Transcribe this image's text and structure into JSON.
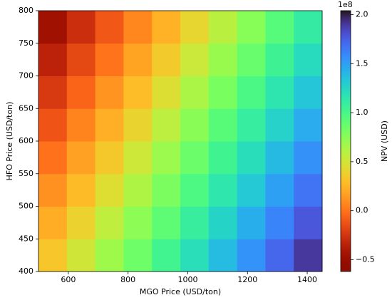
{
  "chart_data": {
    "type": "heatmap",
    "x_label": "MGO Price (USD/ton)",
    "y_label": "HFO Price (USD/ton)",
    "colorbar_label": "NPV (USD)",
    "colorbar_offset": "1e8",
    "colormap": "turbo_r",
    "x": [
      547.5,
      642.5,
      737.5,
      832.5,
      927.5,
      1022.5,
      1117.5,
      1212.5,
      1307.5,
      1402.5
    ],
    "y": [
      425,
      475,
      525,
      575,
      625,
      675,
      725,
      775
    ],
    "z": [
      [
        0.33,
        0.51,
        0.68,
        0.85,
        1.03,
        1.2,
        1.38,
        1.55,
        1.72,
        1.9
      ],
      [
        0.22,
        0.39,
        0.57,
        0.74,
        0.91,
        1.09,
        1.26,
        1.44,
        1.61,
        1.78
      ],
      [
        0.11,
        0.28,
        0.45,
        0.63,
        0.8,
        0.98,
        1.15,
        1.32,
        1.5,
        1.67
      ],
      [
        -0.01,
        0.17,
        0.34,
        0.52,
        0.69,
        0.86,
        1.04,
        1.21,
        1.39,
        1.56
      ],
      [
        -0.12,
        0.06,
        0.23,
        0.4,
        0.58,
        0.75,
        0.93,
        1.1,
        1.27,
        1.45
      ],
      [
        -0.23,
        -0.06,
        0.12,
        0.29,
        0.46,
        0.64,
        0.81,
        0.99,
        1.16,
        1.33
      ],
      [
        -0.34,
        -0.17,
        0.0,
        0.18,
        0.35,
        0.53,
        0.7,
        0.87,
        1.05,
        1.22
      ],
      [
        -0.46,
        -0.28,
        -0.11,
        0.07,
        0.24,
        0.41,
        0.59,
        0.76,
        0.94,
        1.11
      ]
    ],
    "xlim": [
      500,
      1450
    ],
    "ylim": [
      400,
      800
    ],
    "xticks": [
      600,
      800,
      1000,
      1200,
      1400
    ],
    "yticks": [
      400,
      450,
      500,
      550,
      600,
      650,
      700,
      750,
      800
    ],
    "clim": [
      -0.62,
      2.04
    ],
    "cticks": [
      {
        "value": -0.5,
        "label": "−0.5"
      },
      {
        "value": 0,
        "label": "0.0"
      },
      {
        "value": 0.5,
        "label": "0.5"
      },
      {
        "value": 1,
        "label": "1.0"
      },
      {
        "value": 1.5,
        "label": "1.5"
      },
      {
        "value": 2,
        "label": "2.0"
      }
    ]
  }
}
